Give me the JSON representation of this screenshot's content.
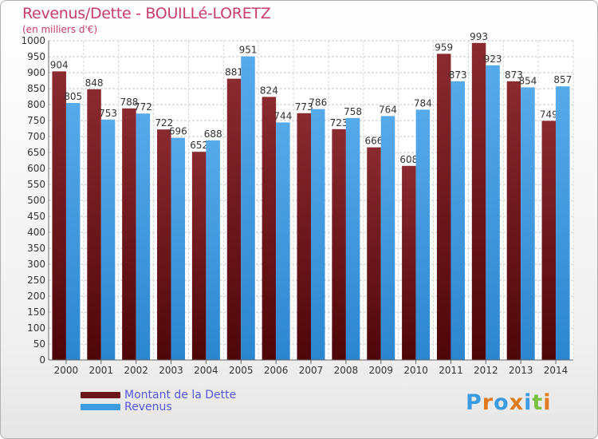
{
  "header": {
    "title": "Revenus/Dette - BOUILLé-LORETZ",
    "subtitle": "(en milliers d'€)"
  },
  "colors": {
    "dette": "#7a1f24",
    "revenus": "#4aa0e0",
    "title": "#c83c6e",
    "legend_text": "#5555e0"
  },
  "legend": {
    "items": [
      {
        "label": "Montant de la Dette",
        "color": "#6b1419"
      },
      {
        "label": "Revenus",
        "color": "#3d9be0"
      }
    ]
  },
  "logo": {
    "letters": [
      "P",
      "r",
      "o",
      "x",
      "i",
      "t",
      "i"
    ],
    "colors": [
      "#3a9be0",
      "#e07a1f",
      "#3a9be0",
      "#e07a1f",
      "#3a9be0",
      "#7ac143",
      "#e07a1f"
    ]
  },
  "chart_data": {
    "type": "bar",
    "title": "Revenus/Dette - BOUILLé-LORETZ",
    "subtitle": "(en milliers d'€)",
    "categories": [
      "2000",
      "2001",
      "2002",
      "2003",
      "2004",
      "2005",
      "2006",
      "2007",
      "2008",
      "2009",
      "2010",
      "2011",
      "2012",
      "2013",
      "2014"
    ],
    "series": [
      {
        "name": "Montant de la Dette",
        "values": [
          904,
          848,
          788,
          722,
          652,
          881,
          824,
          773,
          723,
          666,
          608,
          959,
          993,
          873,
          749
        ]
      },
      {
        "name": "Revenus",
        "values": [
          805,
          753,
          772,
          696,
          688,
          951,
          744,
          786,
          758,
          764,
          784,
          873,
          923,
          854,
          857
        ]
      }
    ],
    "yticks": [
      "0",
      "50",
      "100",
      "150",
      "200",
      "250",
      "300",
      "350",
      "400",
      "450",
      "500",
      "550",
      "600",
      "650",
      "700",
      "750",
      "800",
      "850",
      "900",
      "950",
      "1000"
    ],
    "ylim": [
      0,
      1000
    ],
    "grid": true,
    "legend_position": "bottom-left"
  }
}
